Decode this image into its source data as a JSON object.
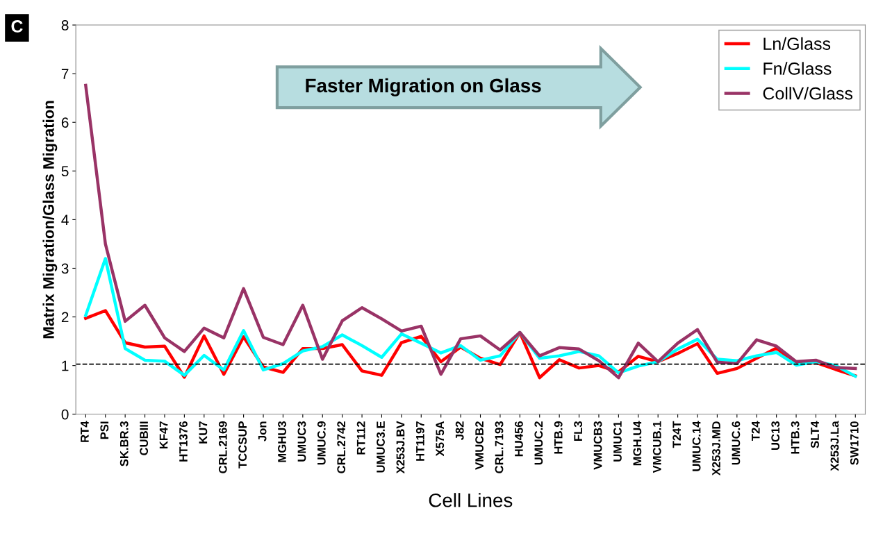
{
  "chart_data": {
    "type": "line",
    "ylabel": "Matrix Migration/Glass Migration",
    "xlabel": "Cell Lines",
    "annotations": [
      "C",
      "Faster Migration on Glass"
    ],
    "categories": [
      "RT4",
      "PSI",
      "SK.BR.3",
      "CUBIII",
      "KF47",
      "HT1376",
      "KU7",
      "CRL.2169",
      "TCCSUP",
      "Jon",
      "MGHU3",
      "UMUC3",
      "UMUC.9",
      "CRL.2742",
      "RT112",
      "UMUC3.E",
      "X253J.BV",
      "HT1197",
      "X575A",
      "J82",
      "VMUCB2",
      "CRL.7193",
      "HU456",
      "UMUC.2",
      "HTB.9",
      "FL3",
      "VMUCB3",
      "UMUC1",
      "MGH.U4",
      "VMCUB.1",
      "T24T",
      "UMUC.14",
      "X253J.MD",
      "UMUC.6",
      "T24",
      "UC13",
      "HTB.3",
      "SLT4",
      "X253J.La",
      "SW1710"
    ],
    "series": [
      {
        "name": "Ln/Glass",
        "color": "#ff0000",
        "values": [
          1.97,
          2.13,
          1.47,
          1.38,
          1.4,
          0.76,
          1.61,
          0.82,
          1.59,
          0.97,
          0.86,
          1.35,
          1.35,
          1.43,
          0.89,
          0.8,
          1.47,
          1.6,
          1.08,
          1.38,
          1.15,
          1.02,
          1.68,
          0.75,
          1.12,
          0.95,
          1.0,
          0.87,
          1.19,
          1.08,
          1.25,
          1.45,
          0.84,
          0.94,
          1.15,
          1.36,
          1.04,
          1.06,
          0.92,
          0.79
        ]
      },
      {
        "name": "Fn/Glass",
        "color": "#00ffff",
        "values": [
          2.03,
          3.2,
          1.35,
          1.11,
          1.09,
          0.8,
          1.21,
          0.91,
          1.72,
          0.91,
          1.04,
          1.3,
          1.39,
          1.63,
          1.41,
          1.17,
          1.65,
          1.46,
          1.26,
          1.41,
          1.11,
          1.2,
          1.68,
          1.15,
          1.2,
          1.29,
          1.2,
          0.85,
          0.99,
          1.08,
          1.34,
          1.54,
          1.13,
          1.1,
          1.2,
          1.27,
          1.01,
          1.08,
          1.0,
          0.78
        ]
      },
      {
        "name": "CollV/Glass",
        "color": "#993366",
        "values": [
          6.76,
          3.5,
          1.91,
          2.24,
          1.57,
          1.29,
          1.77,
          1.57,
          2.58,
          1.58,
          1.43,
          2.24,
          1.13,
          1.92,
          2.19,
          1.96,
          1.71,
          1.81,
          0.82,
          1.55,
          1.61,
          1.32,
          1.68,
          1.2,
          1.37,
          1.34,
          1.1,
          0.75,
          1.46,
          1.08,
          1.46,
          1.74,
          1.07,
          1.04,
          1.53,
          1.4,
          1.08,
          1.11,
          0.96,
          0.94
        ]
      }
    ],
    "ylim": [
      0,
      8
    ],
    "yticks": [
      0,
      1,
      2,
      3,
      4,
      5,
      6,
      7,
      8
    ],
    "ref_lines": [
      {
        "axis": "y",
        "value": 1.03,
        "color": "#000000",
        "line_style": "dashed"
      }
    ],
    "grid": false,
    "legend": "top right",
    "line_style": "solid",
    "marker": "none"
  }
}
